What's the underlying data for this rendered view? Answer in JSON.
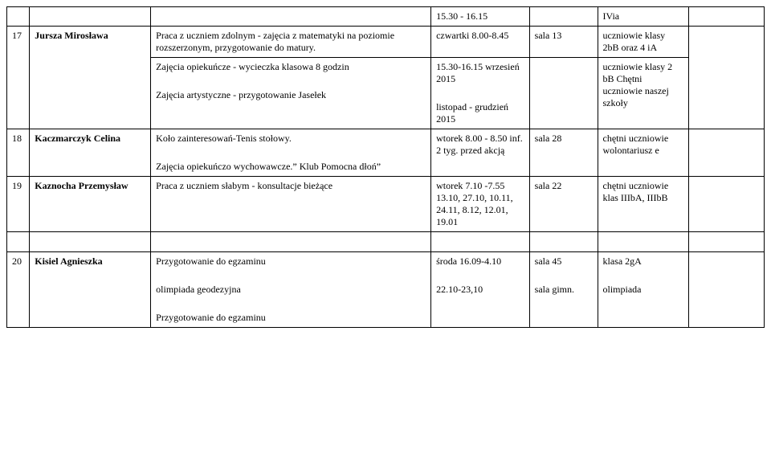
{
  "header_row": {
    "time": "15.30 - 16.15",
    "col6": "IVia"
  },
  "row17": {
    "num": "17",
    "name": "Jursza Mirosława",
    "desc_a": "Praca z uczniem zdolnym - zajęcia z matematyki na poziomie rozszerzonym, przygotowanie do matury.",
    "time_a": "czwartki 8.00-8.45",
    "room_a": "sala 13",
    "who_a": "uczniowie klasy 2bB oraz 4 iA",
    "desc_b1": "Zajęcia opiekuńcze - wycieczka klasowa 8 godzin",
    "desc_b2": "Zajęcia artystyczne - przygotowanie Jasełek",
    "time_b1": "15.30-16.15 wrzesień 2015",
    "time_b2": "listopad - grudzień 2015",
    "who_b": "uczniowie klasy 2 bB Chętni uczniowie naszej szkoły"
  },
  "row18": {
    "num": "18",
    "name": "Kaczmarczyk Celina",
    "desc1": "Koło zainteresowań-Tenis stołowy.",
    "desc2": "Zajęcia opiekuńczo wychowawcze.” Klub Pomocna dłoń”",
    "time": "wtorek 8.00 - 8.50 inf. 2 tyg. przed akcją",
    "room": "sala 28",
    "who": "chętni uczniowie wolontariusz e"
  },
  "row19": {
    "num": "19",
    "name": "Kaznocha Przemysław",
    "desc": "Praca z uczniem słabym - konsultacje bieżące",
    "time": "wtorek  7.10 -7.55 13.10, 27.10, 10.11, 24.11, 8.12, 12.01, 19.01",
    "room": "sala 22",
    "who": "chętni uczniowie klas IIIbA, IIIbB"
  },
  "row20": {
    "num": "20",
    "name": "Kisiel  Agnieszka",
    "desc1": "Przygotowanie do egzaminu",
    "desc2": "olimpiada geodezyjna",
    "desc3": "Przygotowanie do egzaminu",
    "time1": "środa 16.09-4.10",
    "time2": "22.10-23,10",
    "room1": "sala 45",
    "room2": "sala gimn.",
    "who1": "klasa 2gA",
    "who2": "olimpiada"
  }
}
